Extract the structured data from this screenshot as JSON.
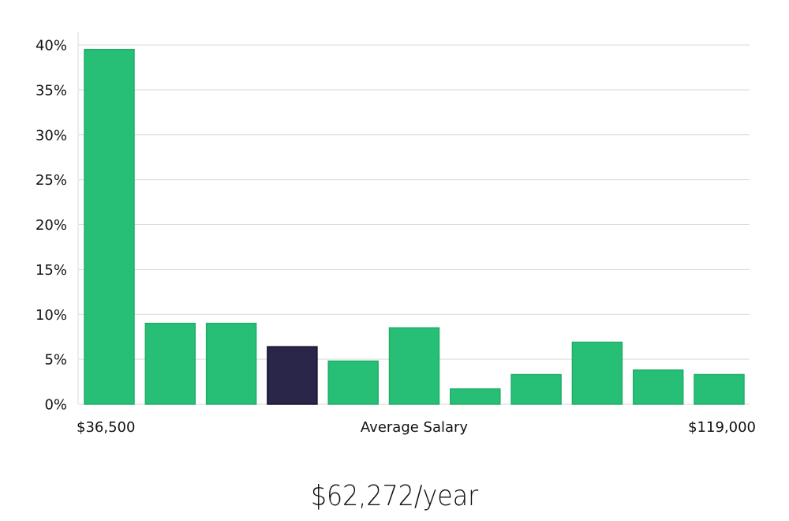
{
  "chart_data": {
    "type": "bar",
    "values": [
      39.5,
      9.0,
      9.0,
      6.4,
      4.8,
      8.5,
      1.7,
      3.3,
      6.9,
      3.8,
      3.3
    ],
    "highlight_index": 3,
    "ylim": [
      0,
      40
    ],
    "yticks": [
      0,
      5,
      10,
      15,
      20,
      25,
      30,
      35,
      40
    ],
    "ytick_format": "%",
    "x_start_label": "$36,500",
    "x_center_label": "Average Salary",
    "x_end_label": "$119,000",
    "grid": true,
    "colors": {
      "bar": "#27be76",
      "bar_border": "#1fae69",
      "highlight": "#29264a",
      "highlight_border": "#14122e",
      "grid": "#d9d9d9"
    }
  },
  "summary": {
    "salary_text": "$62,272/year"
  }
}
